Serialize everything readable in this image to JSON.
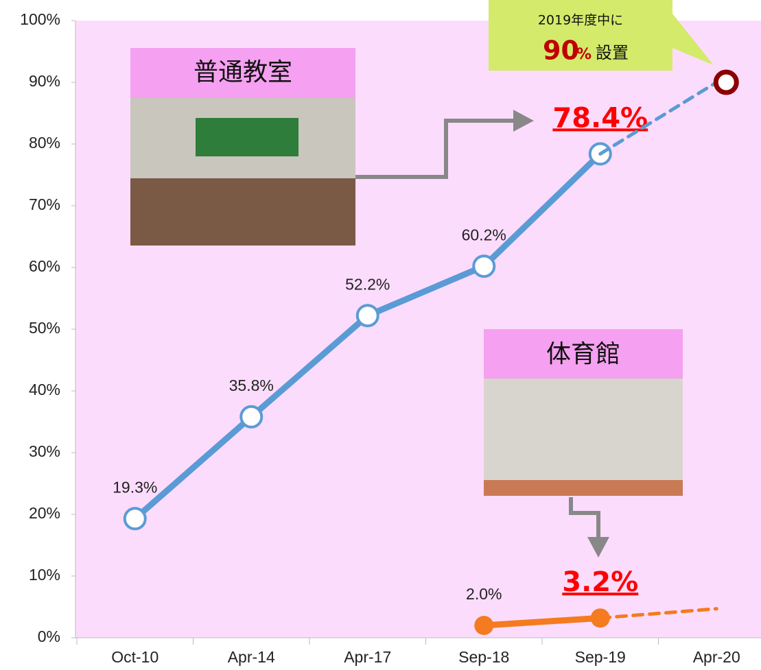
{
  "chart_data": {
    "type": "line",
    "categories": [
      "Oct-10",
      "Apr-14",
      "Apr-17",
      "Sep-18",
      "Sep-19",
      "Apr-20"
    ],
    "series": [
      {
        "color": "#5b9bd5",
        "values": [
          19.3,
          35.8,
          52.2,
          60.2,
          78.4,
          null
        ],
        "value_labels": [
          "19.3%",
          "35.8%",
          "52.2%",
          "60.2%",
          "78.4%",
          null
        ],
        "marker": "open",
        "emphasis_index": 4
      },
      {
        "color": "#5b9bd5",
        "values": [
          null,
          null,
          null,
          null,
          78.4,
          90
        ],
        "dashed": true,
        "end_marker_color": "#8b0000"
      },
      {
        "color": "#f47b20",
        "values": [
          null,
          null,
          null,
          2.0,
          3.2,
          null
        ],
        "value_labels": [
          null,
          null,
          null,
          "2.0%",
          "3.2%",
          null
        ],
        "marker": "filled",
        "emphasis_index": 4
      },
      {
        "color": "#f47b20",
        "values": [
          null,
          null,
          null,
          null,
          3.2,
          4.7
        ],
        "dashed": true
      }
    ],
    "ylim": [
      0,
      100
    ],
    "yticks": [
      {
        "value": 0,
        "label": "0%"
      },
      {
        "value": 10,
        "label": "10%"
      },
      {
        "value": 20,
        "label": "20%"
      },
      {
        "value": 30,
        "label": "30%"
      },
      {
        "value": 40,
        "label": "40%"
      },
      {
        "value": 50,
        "label": "50%"
      },
      {
        "value": 60,
        "label": "60%"
      },
      {
        "value": 70,
        "label": "70%"
      },
      {
        "value": 80,
        "label": "80%"
      },
      {
        "value": 90,
        "label": "90%"
      },
      {
        "value": 100,
        "label": "100%"
      }
    ],
    "annotations": {
      "classroom": "普通教室",
      "gym": "体育館",
      "callout": {
        "text": "2019年度中に",
        "number": "90",
        "unit": "%",
        "suffix": "設置"
      }
    }
  }
}
